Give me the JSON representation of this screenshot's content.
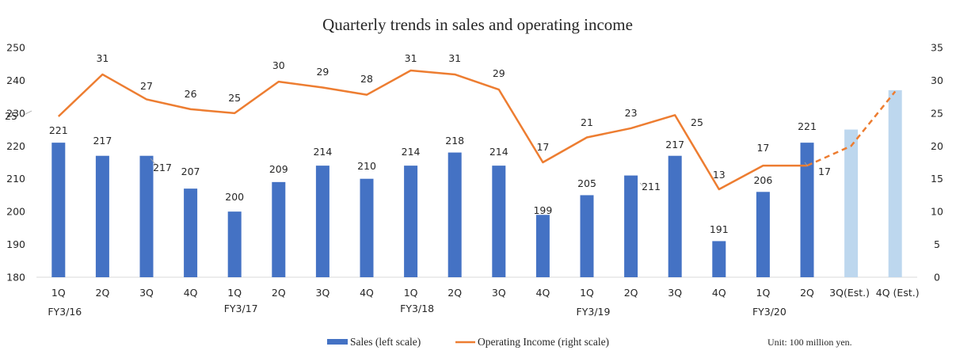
{
  "chart_data": {
    "type": "bar",
    "title": "Quarterly trends in sales and operating income",
    "categories": [
      "1Q",
      "2Q",
      "3Q",
      "4Q",
      "1Q",
      "2Q",
      "3Q",
      "4Q",
      "1Q",
      "2Q",
      "3Q",
      "4Q",
      "1Q",
      "2Q",
      "3Q",
      "4Q",
      "1Q",
      "2Q",
      "3Q(Est.)",
      "4Q (Est.)"
    ],
    "category_groups": [
      {
        "label": "FY3/16",
        "index": 0
      },
      {
        "label": "FY3/17",
        "index": 4
      },
      {
        "label": "FY3/18",
        "index": 8
      },
      {
        "label": "FY3/19",
        "index": 12
      },
      {
        "label": "FY3/20",
        "index": 16
      }
    ],
    "series": [
      {
        "name": "Sales (left scale)",
        "type": "bar",
        "axis": "left",
        "values": [
          221,
          217,
          217,
          207,
          200,
          209,
          214,
          210,
          214,
          218,
          214,
          199,
          205,
          211,
          217,
          191,
          206,
          221,
          225,
          237
        ],
        "data_labels": [
          "221",
          "217",
          "217",
          "207",
          "200",
          "209",
          "214",
          "210",
          "214",
          "218",
          "214",
          "199",
          "205",
          "211",
          "217",
          "191",
          "206",
          "221",
          null,
          null
        ],
        "estimated_from_index": 18,
        "color": "#4472c4",
        "estimate_color": "#bdd7ee"
      },
      {
        "name": "Operating Income (right scale)",
        "type": "line",
        "axis": "right",
        "values": [
          25,
          31,
          27,
          26,
          25,
          30,
          29,
          28,
          31,
          31,
          29,
          17,
          21,
          23,
          25,
          13,
          17,
          17,
          20,
          28
        ],
        "plot_values": [
          24.5,
          30.9,
          27.1,
          25.6,
          25.0,
          29.8,
          28.9,
          27.8,
          31.5,
          30.9,
          28.6,
          17.5,
          21.3,
          22.7,
          24.7,
          13.4,
          17.0,
          17.0,
          20.0,
          28.3
        ],
        "data_labels": [
          "25",
          "31",
          "27",
          "26",
          "25",
          "30",
          "29",
          "28",
          "31",
          "31",
          "29",
          "17",
          "21",
          "23",
          "25",
          "13",
          "17",
          "17",
          null,
          null
        ],
        "dashed_from_index": 17,
        "color": "#ed7d31"
      }
    ],
    "y_left": {
      "min": 180,
      "max": 250,
      "step": 10,
      "ticks": [
        "180",
        "190",
        "200",
        "210",
        "220",
        "230",
        "240",
        "250"
      ]
    },
    "y_right": {
      "min": 0,
      "max": 35,
      "step": 5,
      "ticks": [
        "0",
        "5",
        "10",
        "15",
        "20",
        "25",
        "30",
        "35"
      ]
    },
    "grid": false,
    "legend": {
      "position": "bottom",
      "entries": [
        "Sales (left scale)",
        "Operating Income (right scale)"
      ]
    },
    "unit_note": "Unit: 100 million yen."
  }
}
